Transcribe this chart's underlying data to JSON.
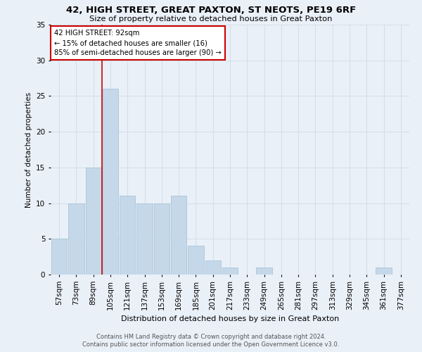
{
  "title1": "42, HIGH STREET, GREAT PAXTON, ST NEOTS, PE19 6RF",
  "title2": "Size of property relative to detached houses in Great Paxton",
  "xlabel": "Distribution of detached houses by size in Great Paxton",
  "ylabel": "Number of detached properties",
  "footnote1": "Contains HM Land Registry data © Crown copyright and database right 2024.",
  "footnote2": "Contains public sector information licensed under the Open Government Licence v3.0.",
  "bar_labels": [
    "57sqm",
    "73sqm",
    "89sqm",
    "105sqm",
    "121sqm",
    "137sqm",
    "153sqm",
    "169sqm",
    "185sqm",
    "201sqm",
    "217sqm",
    "233sqm",
    "249sqm",
    "265sqm",
    "281sqm",
    "297sqm",
    "313sqm",
    "329sqm",
    "345sqm",
    "361sqm",
    "377sqm"
  ],
  "bar_values": [
    5,
    10,
    15,
    26,
    11,
    10,
    10,
    11,
    4,
    2,
    1,
    0,
    1,
    0,
    0,
    0,
    0,
    0,
    0,
    1,
    0
  ],
  "bar_color": "#c5d8ea",
  "bar_edge_color": "#a8c4d8",
  "grid_color": "#d5dfe8",
  "background_color": "#eaf0f8",
  "vline_x": 2.5,
  "vline_color": "#cc0000",
  "annotation_text": "42 HIGH STREET: 92sqm\n← 15% of detached houses are smaller (16)\n85% of semi-detached houses are larger (90) →",
  "annotation_box_color": "white",
  "annotation_box_edge": "#cc0000",
  "ylim": [
    0,
    35
  ],
  "yticks": [
    0,
    5,
    10,
    15,
    20,
    25,
    30,
    35
  ]
}
